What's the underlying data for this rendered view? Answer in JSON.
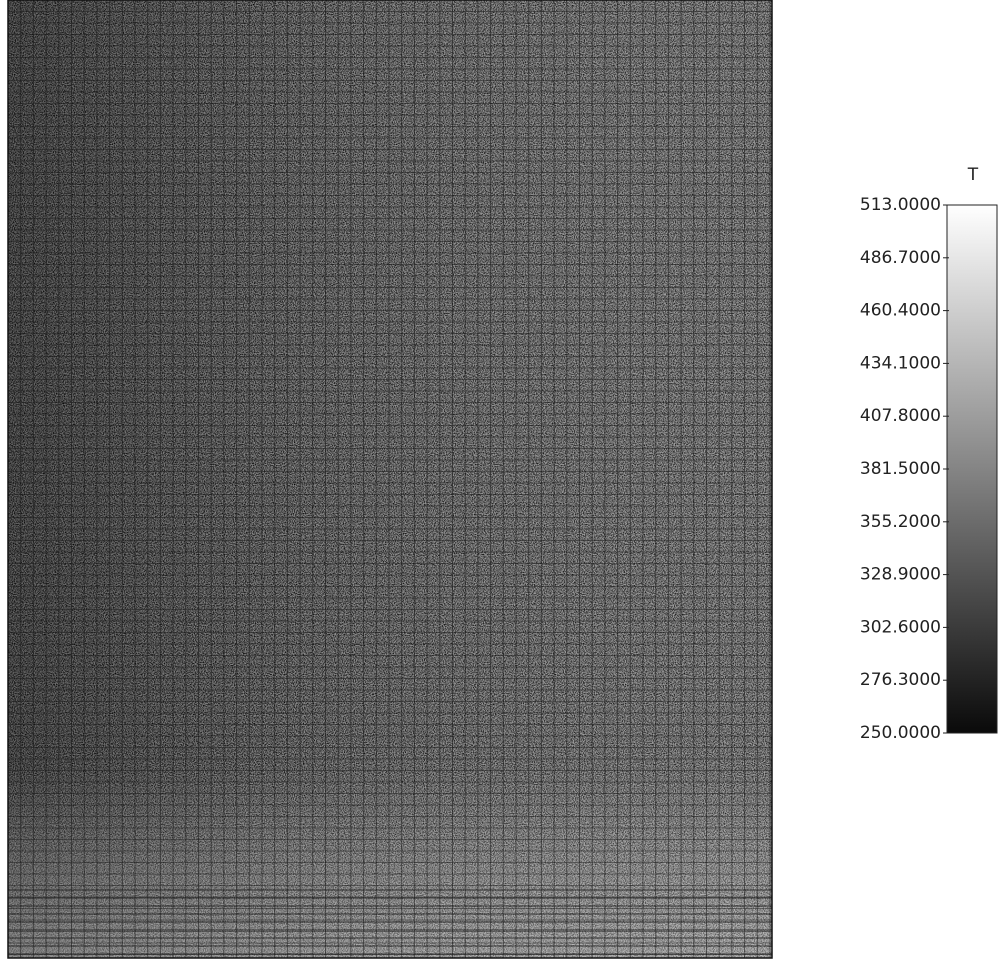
{
  "chart_data": {
    "type": "contour",
    "colorbar": {
      "title": "T",
      "lim": [
        250,
        513
      ],
      "colors": [
        "#0a0a0a",
        "#ffffff"
      ],
      "ticks": [
        {
          "value": 250,
          "label": "250.0000"
        },
        {
          "value": 276.3,
          "label": "276.3000"
        },
        {
          "value": 302.6,
          "label": "302.6000"
        },
        {
          "value": 328.9,
          "label": "328.9000"
        },
        {
          "value": 355.2,
          "label": "355.2000"
        },
        {
          "value": 381.5,
          "label": "381.5000"
        },
        {
          "value": 407.8,
          "label": "407.8000"
        },
        {
          "value": 434.1,
          "label": "434.1000"
        },
        {
          "value": 460.4,
          "label": "460.4000"
        },
        {
          "value": 486.7,
          "label": "486.7000"
        },
        {
          "value": 513,
          "label": "513.0000"
        }
      ]
    }
  }
}
